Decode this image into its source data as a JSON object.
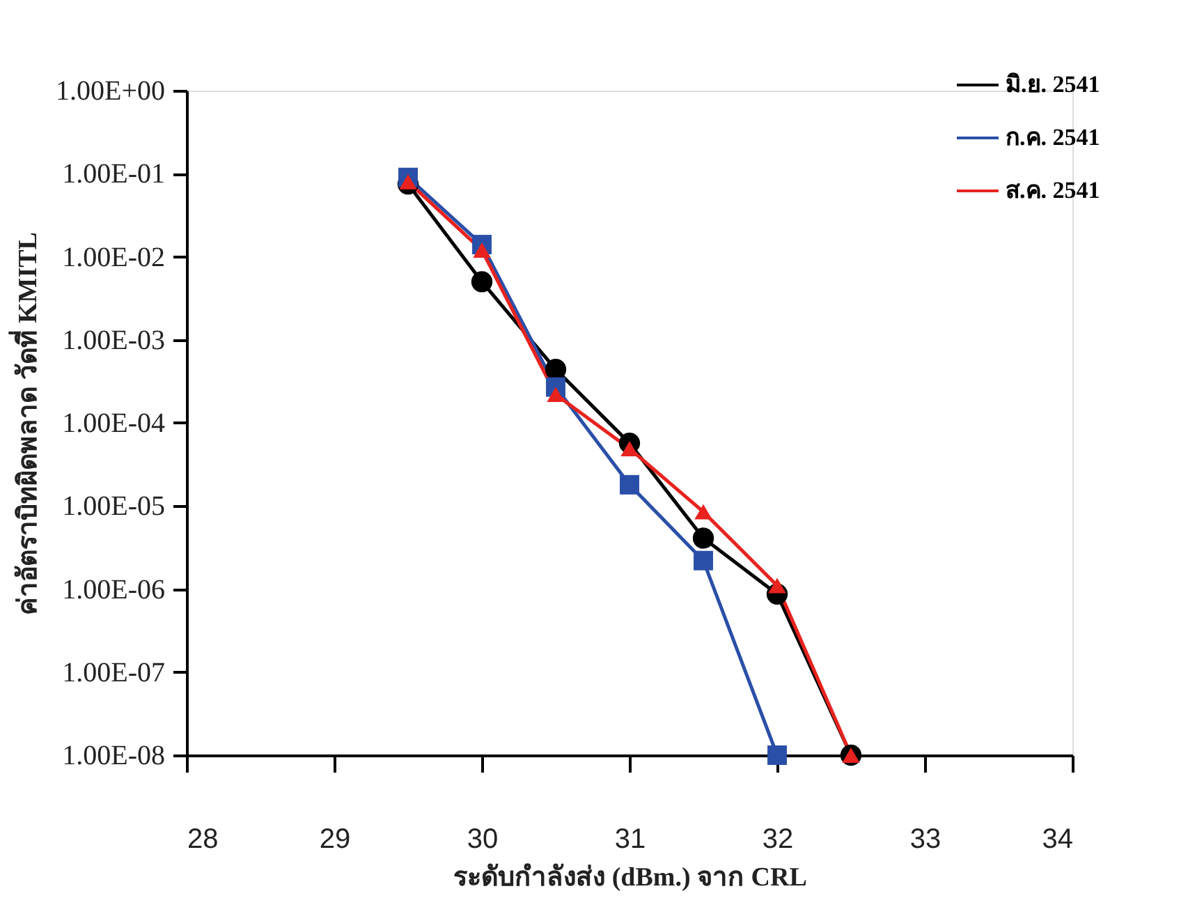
{
  "chart_data": {
    "type": "line",
    "xlabel": "ระดับกำลังส่ง (dBm.) จาก CRL",
    "ylabel": "ค่าอัตราบิทผิดพลาด วัดที่ KMITL",
    "log": "y",
    "xlim": [
      28,
      34
    ],
    "xticks": [
      28,
      29,
      30,
      31,
      32,
      33,
      34
    ],
    "ylim": [
      1e-08,
      1
    ],
    "yticks": [
      {
        "value": 1,
        "label": "1.00E+00"
      },
      {
        "value": 0.1,
        "label": "1.00E-01"
      },
      {
        "value": 0.01,
        "label": "1.00E-02"
      },
      {
        "value": 0.001,
        "label": "1.00E-03"
      },
      {
        "value": 0.0001,
        "label": "1.00E-04"
      },
      {
        "value": 1e-05,
        "label": "1.00E-05"
      },
      {
        "value": 1e-06,
        "label": "1.00E-06"
      },
      {
        "value": 1e-07,
        "label": "1.00E-07"
      },
      {
        "value": 1e-08,
        "label": "1.00E-08"
      }
    ],
    "grid": false,
    "legend": "top right",
    "series": [
      {
        "name": "มิ.ย. 2541",
        "color": "#000000",
        "marker": "circle",
        "x": [
          29.5,
          30,
          30.5,
          31,
          31.5,
          32,
          32.5
        ],
        "values": [
          0.075,
          0.005,
          0.00044,
          5.7e-05,
          4.1e-06,
          8.7e-07,
          1e-08
        ]
      },
      {
        "name": "ก.ค. 2541",
        "color": "#2a4fa8",
        "marker": "square",
        "x": [
          29.5,
          30,
          30.5,
          31,
          31.5,
          32
        ],
        "values": [
          0.09,
          0.014,
          0.00027,
          1.8e-05,
          2.2e-06,
          1e-08
        ]
      },
      {
        "name": "ส.ค. 2541",
        "color": "#e8231f",
        "marker": "triangle",
        "x": [
          29.5,
          30,
          30.5,
          31,
          31.5,
          32,
          32.5
        ],
        "values": [
          0.08,
          0.012,
          0.00022,
          4.9e-05,
          8.5e-06,
          1.1e-06,
          1e-08
        ]
      }
    ]
  }
}
